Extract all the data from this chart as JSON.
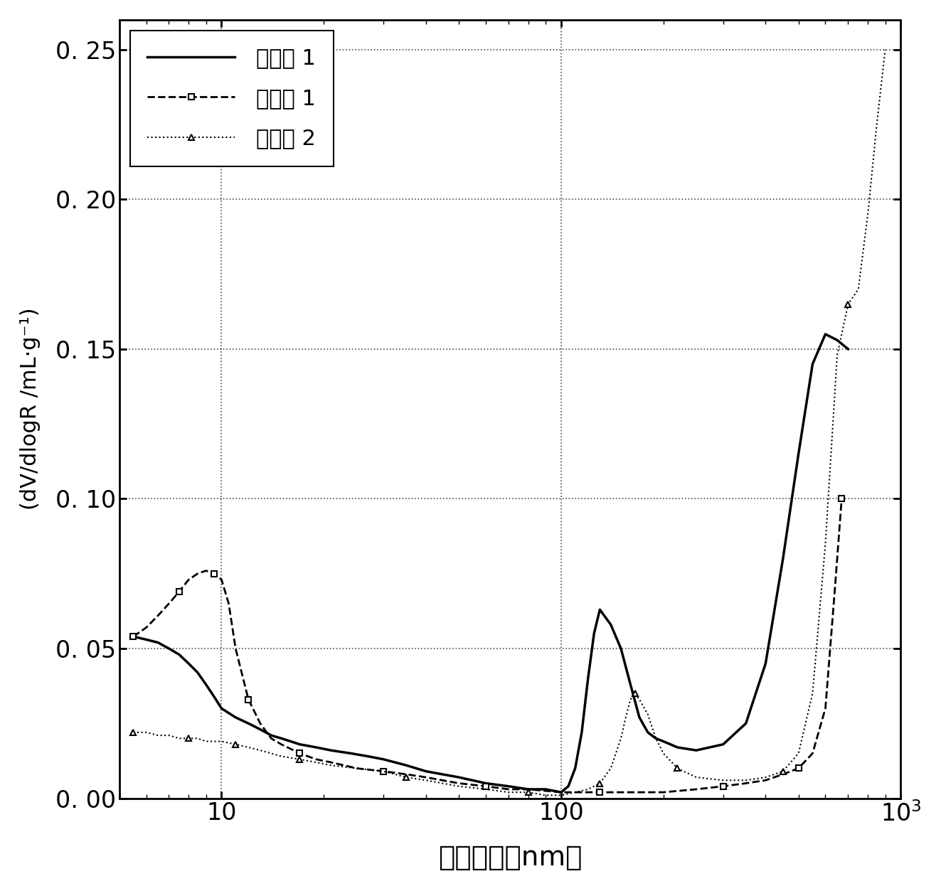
{
  "title": "",
  "xlabel": "孔隙半径（nm）",
  "ylabel": "(dV/dlogR /mL·g⁻¹)",
  "xlim": [
    5,
    1000
  ],
  "ylim": [
    0.0,
    0.26
  ],
  "yticks": [
    0.0,
    0.05,
    0.1,
    0.15,
    0.2,
    0.25
  ],
  "ytick_labels": [
    "0.00",
    "0.05",
    "0.10",
    "0.15",
    "0.20",
    "0.25"
  ],
  "legend_labels": [
    "实施例 1",
    "比较例 1",
    "比较例 2"
  ],
  "background_color": "#ffffff",
  "series1_x": [
    5.5,
    6.0,
    6.5,
    7.0,
    7.5,
    8.0,
    8.5,
    9.0,
    9.5,
    10.0,
    11.0,
    12.0,
    13.0,
    14.0,
    15.0,
    17.0,
    19.0,
    21.0,
    24.0,
    27.0,
    30.0,
    35.0,
    40.0,
    50.0,
    60.0,
    70.0,
    80.0,
    90.0,
    100.0,
    105.0,
    110.0,
    115.0,
    120.0,
    125.0,
    130.0,
    140.0,
    150.0,
    160.0,
    170.0,
    180.0,
    190.0,
    200.0,
    220.0,
    250.0,
    300.0,
    350.0,
    400.0,
    450.0,
    500.0,
    550.0,
    600.0,
    650.0,
    700.0
  ],
  "series1_y": [
    0.054,
    0.053,
    0.052,
    0.05,
    0.048,
    0.045,
    0.042,
    0.038,
    0.034,
    0.03,
    0.027,
    0.025,
    0.023,
    0.021,
    0.02,
    0.018,
    0.017,
    0.016,
    0.015,
    0.014,
    0.013,
    0.011,
    0.009,
    0.007,
    0.005,
    0.004,
    0.003,
    0.003,
    0.002,
    0.004,
    0.01,
    0.022,
    0.04,
    0.055,
    0.063,
    0.058,
    0.05,
    0.038,
    0.027,
    0.022,
    0.02,
    0.019,
    0.017,
    0.016,
    0.018,
    0.025,
    0.045,
    0.08,
    0.115,
    0.145,
    0.155,
    0.153,
    0.15
  ],
  "series2_x": [
    5.5,
    6.0,
    6.5,
    7.0,
    7.5,
    8.0,
    8.5,
    9.0,
    9.5,
    10.0,
    10.5,
    11.0,
    12.0,
    13.0,
    14.0,
    15.0,
    17.0,
    19.0,
    21.0,
    25.0,
    30.0,
    35.0,
    40.0,
    50.0,
    60.0,
    70.0,
    80.0,
    100.0,
    130.0,
    160.0,
    200.0,
    250.0,
    300.0,
    350.0,
    400.0,
    450.0,
    500.0,
    550.0,
    600.0,
    640.0,
    670.0
  ],
  "series2_y": [
    0.054,
    0.057,
    0.061,
    0.065,
    0.069,
    0.073,
    0.075,
    0.076,
    0.075,
    0.073,
    0.065,
    0.05,
    0.033,
    0.025,
    0.02,
    0.018,
    0.015,
    0.013,
    0.012,
    0.01,
    0.009,
    0.008,
    0.007,
    0.005,
    0.004,
    0.003,
    0.003,
    0.002,
    0.002,
    0.002,
    0.002,
    0.003,
    0.004,
    0.005,
    0.006,
    0.008,
    0.01,
    0.015,
    0.03,
    0.07,
    0.1
  ],
  "series3_x": [
    5.5,
    6.0,
    6.5,
    7.0,
    7.5,
    8.0,
    8.5,
    9.0,
    9.5,
    10.0,
    11.0,
    12.0,
    13.0,
    14.0,
    15.0,
    17.0,
    19.0,
    21.0,
    25.0,
    30.0,
    35.0,
    40.0,
    50.0,
    60.0,
    70.0,
    80.0,
    90.0,
    100.0,
    110.0,
    120.0,
    130.0,
    140.0,
    150.0,
    155.0,
    160.0,
    165.0,
    170.0,
    180.0,
    190.0,
    200.0,
    220.0,
    250.0,
    300.0,
    350.0,
    400.0,
    450.0,
    500.0,
    550.0,
    600.0,
    650.0,
    700.0,
    750.0,
    800.0,
    850.0,
    900.0
  ],
  "series3_y": [
    0.022,
    0.022,
    0.021,
    0.021,
    0.02,
    0.02,
    0.02,
    0.019,
    0.019,
    0.019,
    0.018,
    0.017,
    0.016,
    0.015,
    0.014,
    0.013,
    0.012,
    0.011,
    0.01,
    0.009,
    0.007,
    0.006,
    0.004,
    0.003,
    0.002,
    0.002,
    0.001,
    0.001,
    0.002,
    0.003,
    0.005,
    0.01,
    0.02,
    0.027,
    0.033,
    0.035,
    0.033,
    0.028,
    0.02,
    0.015,
    0.01,
    0.007,
    0.006,
    0.006,
    0.007,
    0.009,
    0.015,
    0.035,
    0.085,
    0.148,
    0.165,
    0.17,
    0.195,
    0.225,
    0.25
  ]
}
